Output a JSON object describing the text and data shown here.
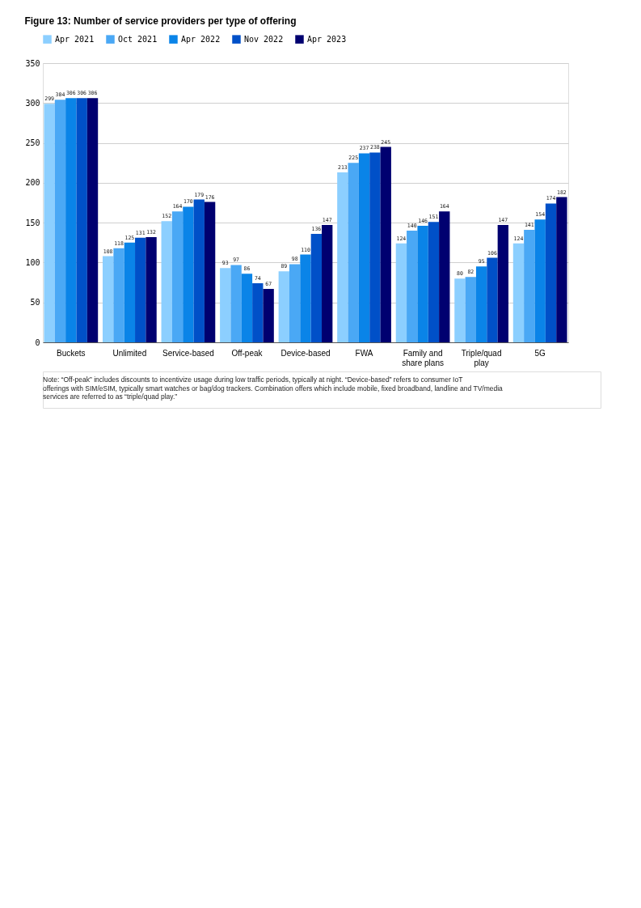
{
  "chart_data": {
    "type": "bar",
    "title": "Figure 13: Number of service providers per type of offering",
    "categories": [
      "Buckets",
      "Unlimited",
      "Service-based",
      "Off-peak",
      "Device-based",
      "FWA",
      "Family and\nshare plans",
      "Triple/quad\nplay",
      "5G"
    ],
    "series": [
      {
        "name": "Apr 2021",
        "color": "#8ccfff",
        "values": [
          299,
          108,
          152,
          93,
          89,
          213,
          124,
          80,
          124
        ]
      },
      {
        "name": "Oct 2021",
        "color": "#4aa8f5",
        "values": [
          304,
          118,
          164,
          97,
          98,
          225,
          140,
          82,
          141
        ]
      },
      {
        "name": "Apr 2022",
        "color": "#0a84e8",
        "values": [
          306,
          125,
          170,
          86,
          110,
          237,
          146,
          95,
          154
        ]
      },
      {
        "name": "Nov 2022",
        "color": "#0050c8",
        "values": [
          306,
          131,
          179,
          74,
          136,
          238,
          151,
          106,
          174
        ]
      },
      {
        "name": "Apr 2023",
        "color": "#000070",
        "values": [
          306,
          132,
          176,
          67,
          147,
          245,
          164,
          147,
          182
        ]
      }
    ],
    "ylim": [
      0,
      350
    ],
    "yticks": [
      0,
      50,
      100,
      150,
      200,
      250,
      300,
      350
    ],
    "grid": "y",
    "legend": "top left",
    "data_labels": true,
    "annotations": [
      "Note: “Off-peak” includes discounts to incentivize usage during low traffic periods, typically at night. “Device-based” refers to consumer IoT offerings with SIM/eSIM, typically smart watches or bag/dog trackers. Combination offers which include mobile, fixed broadband, landline and TV/media services are referred to as “triple/quad play.”"
    ]
  }
}
